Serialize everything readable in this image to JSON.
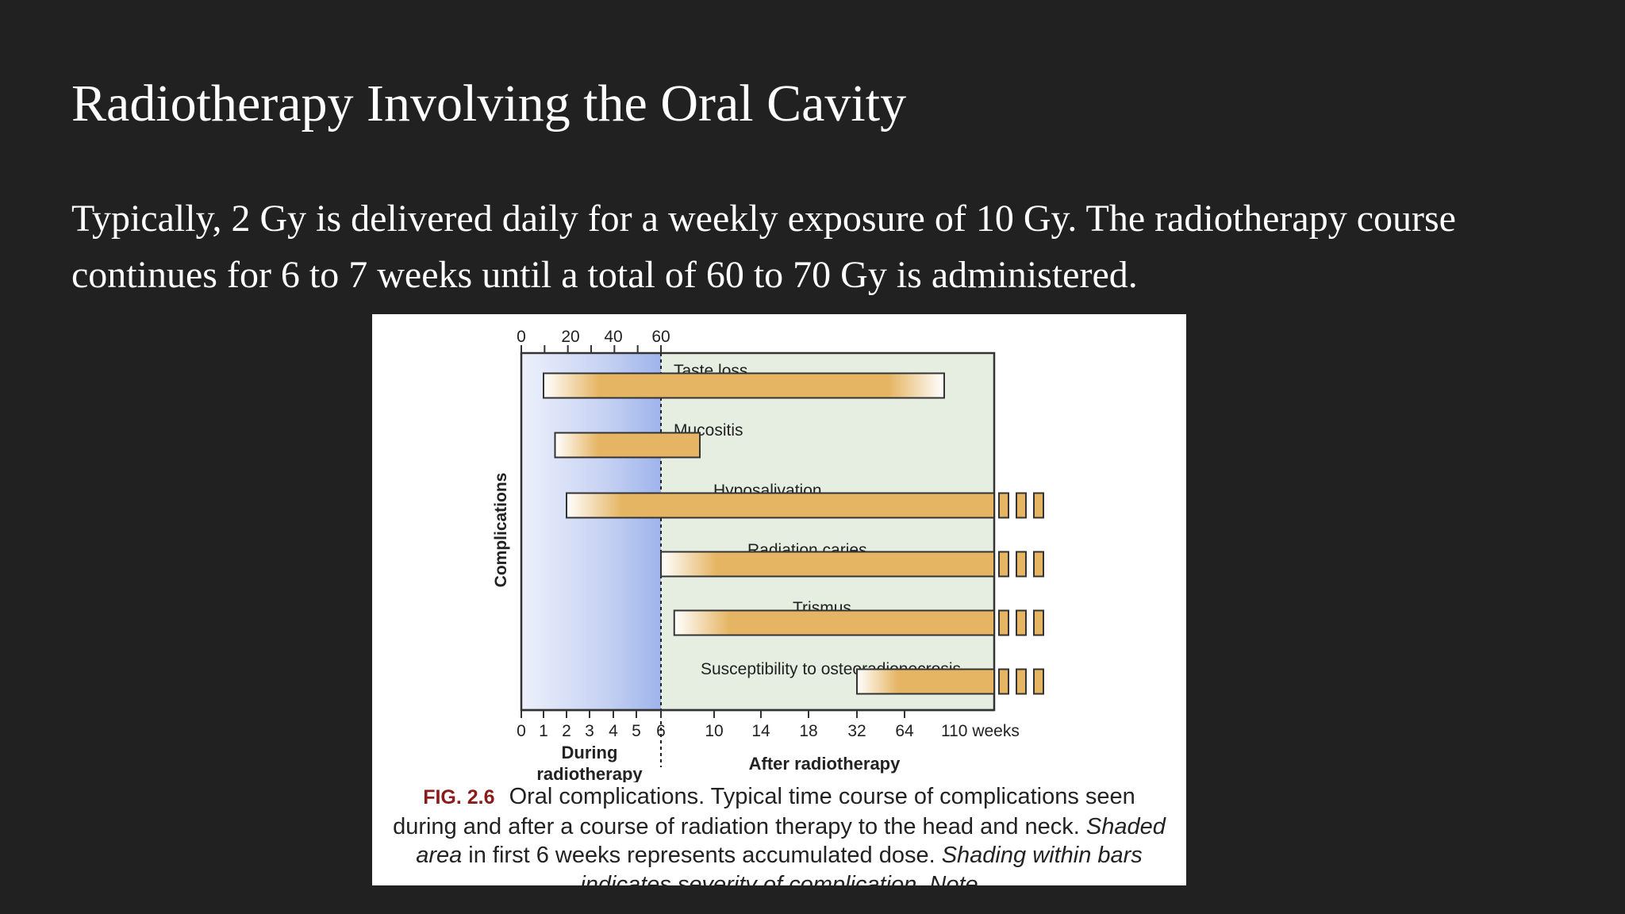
{
  "slide": {
    "title": "Radiotherapy Involving the Oral Cavity",
    "body": "Typically, 2 Gy is delivered daily for a weekly exposure of 10 Gy. The radiotherapy course continues for 6 to 7 weeks until a total of 60 to 70 Gy is administered."
  },
  "figure": {
    "caption_label": "FIG. 2.6",
    "caption_part1": "Oral complications. Typical time course of complications seen during and after a course of radiation therapy to the head and neck.",
    "caption_italic1": "Shaded area",
    "caption_part2": "in first 6 weeks represents accumulated dose.",
    "caption_part3": "Shading within bars indicates severity of complication. Note"
  },
  "chart_data": {
    "type": "bar",
    "dose_axis_ticks": [
      "0",
      "20",
      "40",
      "60"
    ],
    "x_ticks": [
      "0",
      "1",
      "2",
      "3",
      "4",
      "5",
      "6",
      "10",
      "14",
      "18",
      "32",
      "64",
      "110 weeks"
    ],
    "ylabel": "Complications",
    "during_label": "During radiotherapy",
    "after_label": "After radiotherapy",
    "series": [
      {
        "name": "Taste loss",
        "start": 1,
        "end": "110",
        "continues": false
      },
      {
        "name": "Mucositis",
        "start": 1.5,
        "end": "10",
        "continues": false
      },
      {
        "name": "Hyposalivation",
        "start": 2,
        "end": ">110",
        "continues": true
      },
      {
        "name": "Radiation caries",
        "start": 6,
        "end": ">110",
        "continues": true
      },
      {
        "name": "Trismus",
        "start": 7,
        "end": ">110",
        "continues": true
      },
      {
        "name": "Susceptibility to osteoradionecrosis",
        "start": 32,
        "end": ">110",
        "continues": true
      }
    ],
    "colors": {
      "bar": "#e6b563",
      "dose_shade": "#9fb4ec",
      "after_region": "#e5eee1"
    }
  }
}
